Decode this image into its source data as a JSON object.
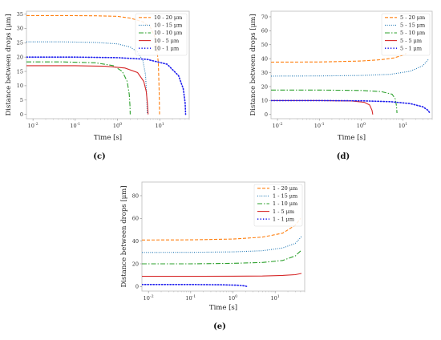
{
  "chart_data": [
    {
      "type": "line",
      "panel_label": "(c)",
      "xlabel": "Time [s]",
      "ylabel": "Distance between drops [μm]",
      "x_scale": "log",
      "xlim": [
        0.007,
        50
      ],
      "ylim": [
        -1.5,
        36
      ],
      "x_ticks": [
        {
          "v": 0.01,
          "base": "10",
          "exp": "-2"
        },
        {
          "v": 0.1,
          "base": "10",
          "exp": "-1"
        },
        {
          "v": 1,
          "base": "10",
          "exp": "0"
        },
        {
          "v": 10,
          "base": "10",
          "exp": "1"
        }
      ],
      "y_ticks": [
        0,
        5,
        10,
        15,
        20,
        25,
        30,
        35
      ],
      "legend_position": "top-right",
      "series": [
        {
          "name": "10 - 20 μm",
          "color": "#ff7f0e",
          "dash": "4,2",
          "width": 1.1,
          "x": [
            0.007,
            0.05,
            0.3,
            1,
            2,
            4,
            6,
            8,
            9.3,
            9.7,
            9.9
          ],
          "y": [
            34.5,
            34.5,
            34.4,
            34.2,
            33.6,
            32.3,
            30.4,
            26.5,
            18,
            8,
            0
          ]
        },
        {
          "name": "10 - 15 μm",
          "color": "#1f77b4",
          "dash": "1,1.6",
          "width": 1.1,
          "x": [
            0.007,
            0.05,
            0.3,
            1,
            2,
            3,
            4,
            4.6,
            4.9,
            5.05
          ],
          "y": [
            25.3,
            25.3,
            25.1,
            24.6,
            23.5,
            21.8,
            18.8,
            14,
            7,
            0
          ]
        },
        {
          "name": "10 - 10 μm",
          "color": "#2ca02c",
          "dash": "6,2,1.5,2",
          "width": 1.1,
          "x": [
            0.007,
            0.05,
            0.3,
            0.8,
            1.3,
            1.7,
            1.9,
            1.98,
            2.0
          ],
          "y": [
            18.3,
            18.3,
            18.0,
            17.0,
            15.0,
            11.5,
            7,
            3,
            0
          ]
        },
        {
          "name": "10 - 5 μm",
          "color": "#d62728",
          "dash": "",
          "width": 1.1,
          "x": [
            0.007,
            0.1,
            0.5,
            1.5,
            3,
            4.2,
            4.8,
            5.1,
            5.3
          ],
          "y": [
            17.0,
            17.0,
            16.8,
            16.2,
            14.6,
            11.5,
            8,
            4,
            0
          ]
        },
        {
          "name": "10 - 1 μm",
          "color": "#2020ee",
          "dash": "1.3,2.2",
          "width": 1.6,
          "x": [
            0.007,
            0.1,
            1,
            5,
            15,
            28,
            36,
            40,
            41
          ],
          "y": [
            20.0,
            20.0,
            19.8,
            19.2,
            17.5,
            13.5,
            9,
            4,
            0
          ]
        }
      ]
    },
    {
      "type": "line",
      "panel_label": "(d)",
      "xlabel": "Time [s]",
      "ylabel": "Distance between drops [μm]",
      "x_scale": "log",
      "xlim": [
        0.007,
        50
      ],
      "ylim": [
        -3,
        74
      ],
      "x_ticks": [
        {
          "v": 0.01,
          "base": "10",
          "exp": "-2"
        },
        {
          "v": 0.1,
          "base": "10",
          "exp": "-1"
        },
        {
          "v": 1,
          "base": "10",
          "exp": "0"
        },
        {
          "v": 10,
          "base": "10",
          "exp": "1"
        }
      ],
      "y_ticks": [
        0,
        10,
        20,
        30,
        40,
        50,
        60,
        70
      ],
      "legend_position": "top-right",
      "series": [
        {
          "name": "5 - 20 μm",
          "color": "#ff7f0e",
          "dash": "4,2",
          "width": 1.1,
          "x": [
            0.007,
            0.1,
            1,
            3,
            6,
            10,
            12
          ],
          "y": [
            37.5,
            37.6,
            38.3,
            39.3,
            40.5,
            42.5,
            43.8
          ]
        },
        {
          "name": "5 - 15 μm",
          "color": "#1f77b4",
          "dash": "1,1.6",
          "width": 1.1,
          "x": [
            0.007,
            0.1,
            1,
            5,
            15,
            30,
            42
          ],
          "y": [
            27.5,
            27.6,
            28.0,
            28.8,
            31,
            35,
            40
          ]
        },
        {
          "name": "5 - 10 μm",
          "color": "#2ca02c",
          "dash": "6,2,1.5,2",
          "width": 1.1,
          "x": [
            0.007,
            0.1,
            1,
            3,
            5.5,
            6.6,
            7.0,
            7.2
          ],
          "y": [
            17.5,
            17.5,
            17.2,
            16.4,
            14.5,
            11,
            6,
            1
          ]
        },
        {
          "name": "5 - 5 μm",
          "color": "#d62728",
          "dash": "",
          "width": 1.1,
          "x": [
            0.007,
            0.1,
            0.6,
            1.2,
            1.6,
            1.82,
            1.9
          ],
          "y": [
            10,
            10,
            9.7,
            8.7,
            6.8,
            3,
            0
          ]
        },
        {
          "name": "5 - 1 μm",
          "color": "#2020ee",
          "dash": "1.3,2.2",
          "width": 1.6,
          "x": [
            0.007,
            0.1,
            1,
            5,
            15,
            30,
            40,
            44
          ],
          "y": [
            10,
            10,
            9.8,
            9.2,
            7.8,
            5.5,
            3,
            1
          ]
        }
      ]
    },
    {
      "type": "line",
      "panel_label": "(e)",
      "xlabel": "Time [s]",
      "ylabel": "Distance between drops [μm]",
      "x_scale": "log",
      "xlim": [
        0.007,
        50
      ],
      "ylim": [
        -4,
        92
      ],
      "x_ticks": [
        {
          "v": 0.01,
          "base": "10",
          "exp": "-2"
        },
        {
          "v": 0.1,
          "base": "10",
          "exp": "-1"
        },
        {
          "v": 1,
          "base": "10",
          "exp": "0"
        },
        {
          "v": 10,
          "base": "10",
          "exp": "1"
        }
      ],
      "y_ticks": [
        0,
        20,
        40,
        60,
        80
      ],
      "legend_position": "top-right",
      "series": [
        {
          "name": "1 - 20 μm",
          "color": "#ff7f0e",
          "dash": "4,2",
          "width": 1.1,
          "x": [
            0.007,
            0.1,
            1,
            5,
            15,
            30,
            40
          ],
          "y": [
            41,
            41.1,
            41.8,
            43.5,
            47,
            54,
            60
          ]
        },
        {
          "name": "1 - 15 μm",
          "color": "#1f77b4",
          "dash": "1,1.6",
          "width": 1.1,
          "x": [
            0.007,
            0.1,
            1,
            5,
            15,
            30,
            42
          ],
          "y": [
            30,
            30.1,
            30.5,
            31.5,
            34,
            38,
            44
          ]
        },
        {
          "name": "1 - 10 μm",
          "color": "#2ca02c",
          "dash": "6,2,1.5,2",
          "width": 1.1,
          "x": [
            0.007,
            0.1,
            1,
            5,
            15,
            30,
            42
          ],
          "y": [
            20,
            20,
            20.4,
            21.2,
            23,
            27,
            32
          ]
        },
        {
          "name": "1 - 5 μm",
          "color": "#d62728",
          "dash": "",
          "width": 1.1,
          "x": [
            0.007,
            0.1,
            1,
            5,
            15,
            30,
            42
          ],
          "y": [
            9,
            9,
            9.1,
            9.3,
            9.8,
            10.5,
            11.5
          ]
        },
        {
          "name": "1 - 1 μm",
          "color": "#2020ee",
          "dash": "1.3,2.2",
          "width": 1.6,
          "x": [
            0.007,
            0.1,
            0.5,
            1.2,
            1.9,
            2.1
          ],
          "y": [
            1.8,
            1.8,
            1.6,
            1.2,
            0.6,
            0.2
          ]
        }
      ]
    }
  ]
}
